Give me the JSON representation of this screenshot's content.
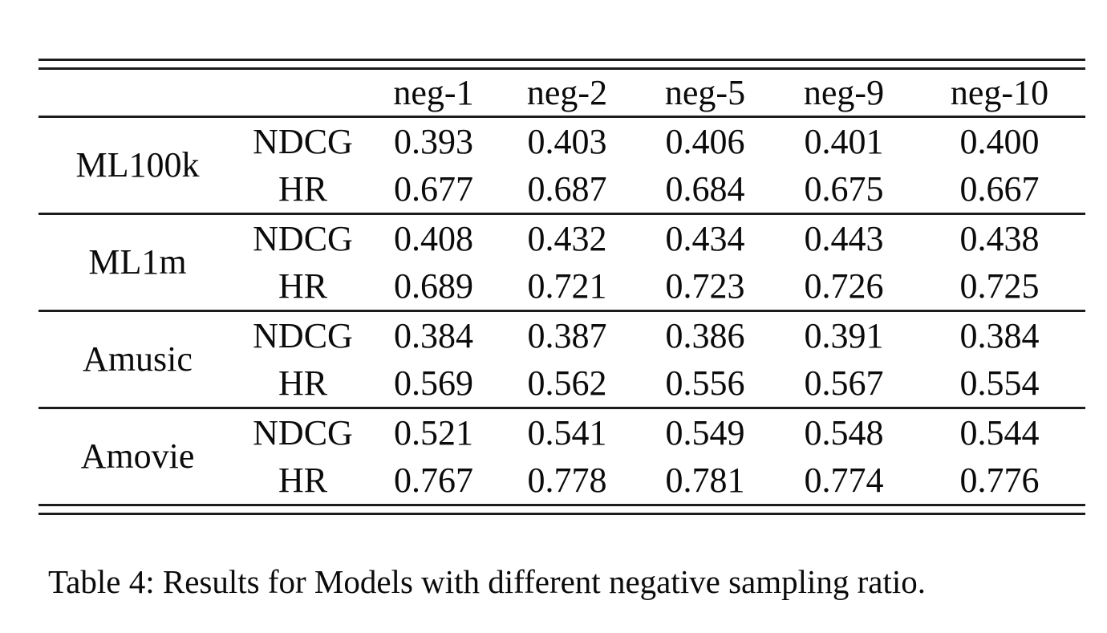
{
  "table": {
    "columns": [
      "neg-1",
      "neg-2",
      "neg-5",
      "neg-9",
      "neg-10"
    ],
    "metric_names": [
      "NDCG",
      "HR"
    ],
    "groups": [
      {
        "name": "ML100k",
        "rows": [
          {
            "metric": "NDCG",
            "values": [
              "0.393",
              "0.403",
              "0.406",
              "0.401",
              "0.400"
            ]
          },
          {
            "metric": "HR",
            "values": [
              "0.677",
              "0.687",
              "0.684",
              "0.675",
              "0.667"
            ]
          }
        ]
      },
      {
        "name": "ML1m",
        "rows": [
          {
            "metric": "NDCG",
            "values": [
              "0.408",
              "0.432",
              "0.434",
              "0.443",
              "0.438"
            ]
          },
          {
            "metric": "HR",
            "values": [
              "0.689",
              "0.721",
              "0.723",
              "0.726",
              "0.725"
            ]
          }
        ]
      },
      {
        "name": "Amusic",
        "rows": [
          {
            "metric": "NDCG",
            "values": [
              "0.384",
              "0.387",
              "0.386",
              "0.391",
              "0.384"
            ]
          },
          {
            "metric": "HR",
            "values": [
              "0.569",
              "0.562",
              "0.556",
              "0.567",
              "0.554"
            ]
          }
        ]
      },
      {
        "name": "Amovie",
        "rows": [
          {
            "metric": "NDCG",
            "values": [
              "0.521",
              "0.541",
              "0.549",
              "0.548",
              "0.544"
            ]
          },
          {
            "metric": "HR",
            "values": [
              "0.767",
              "0.778",
              "0.781",
              "0.774",
              "0.776"
            ]
          }
        ]
      }
    ]
  },
  "caption": "Table 4: Results for Models with different negative sampling ratio."
}
